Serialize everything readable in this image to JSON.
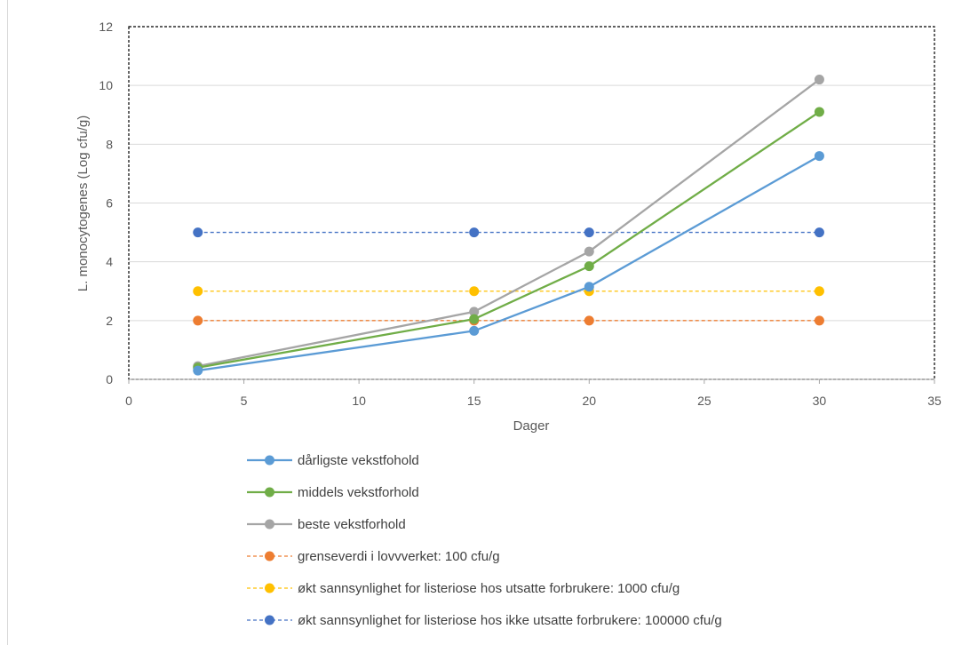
{
  "chart_data": {
    "type": "line",
    "xlabel": "Dager",
    "ylabel": "L. monocytogenes (Log cfu/g)",
    "xlim": [
      0,
      35
    ],
    "ylim": [
      0,
      12
    ],
    "xticks": [
      "0",
      "5",
      "10",
      "15",
      "20",
      "25",
      "30",
      "35"
    ],
    "yticks": [
      "0",
      "2",
      "4",
      "6",
      "8",
      "10",
      "12"
    ],
    "grid": "horizontal",
    "legend_position": "bottom",
    "x": [
      3,
      15,
      20,
      30
    ],
    "series": [
      {
        "name": "dårligste vekstfohold",
        "values": [
          0.3,
          1.65,
          3.15,
          7.6
        ],
        "color": "#5b9bd5",
        "style": "solid"
      },
      {
        "name": "middels vekstforhold",
        "values": [
          0.4,
          2.05,
          3.85,
          9.1
        ],
        "color": "#70ad47",
        "style": "solid"
      },
      {
        "name": "beste vekstforhold",
        "values": [
          0.45,
          2.3,
          4.35,
          10.2
        ],
        "color": "#a5a5a5",
        "style": "solid"
      },
      {
        "name": "grenseverdi i lovvverket: 100 cfu/g",
        "values": [
          2,
          2,
          2,
          2
        ],
        "color": "#ed7d31",
        "style": "dashed"
      },
      {
        "name": "økt sannsynlighet for listeriose hos utsatte forbrukere:  1000 cfu/g",
        "values": [
          3,
          3,
          3,
          3
        ],
        "color": "#ffc000",
        "style": "dashed"
      },
      {
        "name": "økt sannsynlighet for listeriose hos ikke utsatte forbrukere: 100000 cfu/g",
        "values": [
          5,
          5,
          5,
          5
        ],
        "color": "#4472c4",
        "style": "dashed"
      }
    ]
  }
}
